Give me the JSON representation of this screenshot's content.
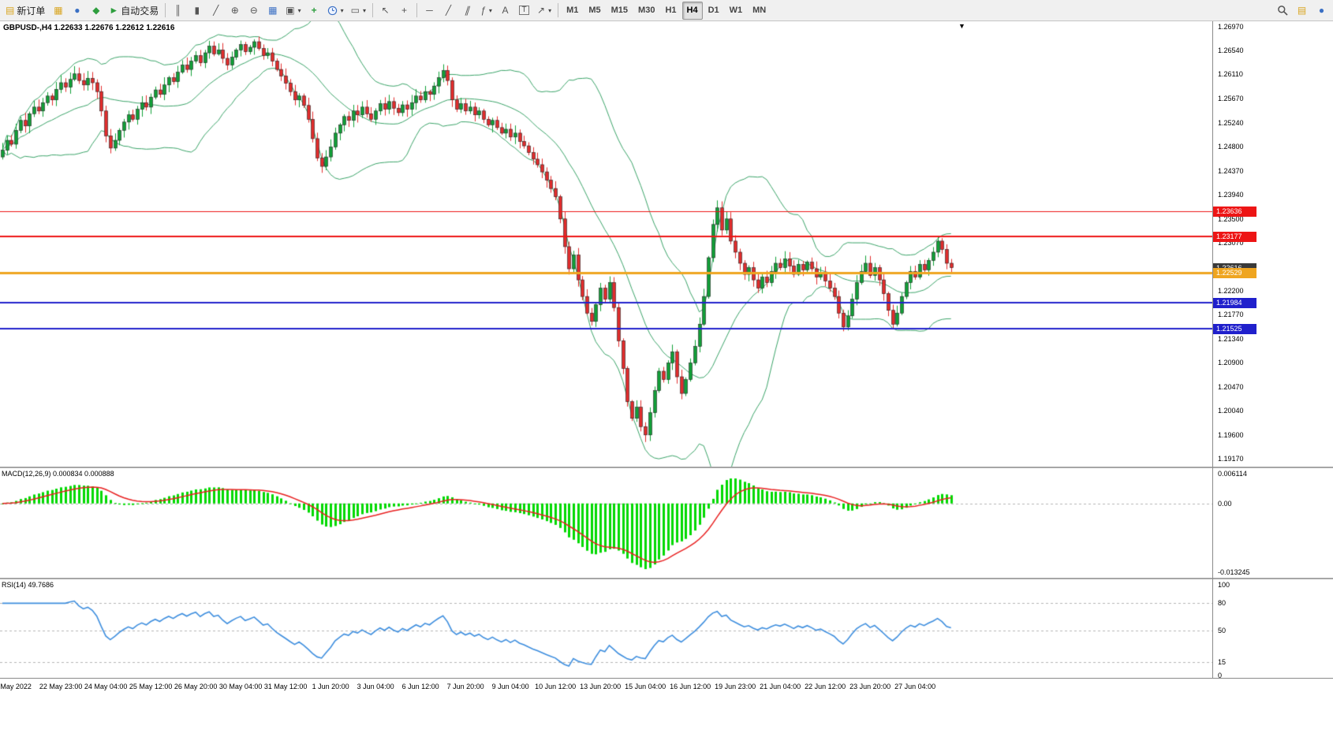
{
  "toolbar": {
    "new_order_label": "新订单",
    "autotrading_label": "自动交易",
    "timeframes": [
      "M1",
      "M5",
      "M15",
      "M30",
      "H1",
      "H4",
      "D1",
      "W1",
      "MN"
    ],
    "active_timeframe": "H4",
    "icons": {
      "new_order": "▤",
      "market_watch": "▦",
      "navigator": "●",
      "terminal": "◆",
      "autotrade_play": "►",
      "bar_chart": "║",
      "candle_chart": "▮",
      "line_chart": "╱",
      "zoom_in": "⊕",
      "zoom_out": "⊖",
      "tile_windows": "▦",
      "new_window": "▣",
      "indicators": "+",
      "templates": "▭",
      "cursor": "↖",
      "crosshair": "+",
      "hline": "─",
      "trendline": "╱",
      "channel": "∥",
      "fibonacci": "ƒ",
      "text": "A",
      "text_label": "T",
      "arrows": "↗",
      "dropdown": "▾",
      "shift_marker": "▼",
      "quick": "▤",
      "account": "●"
    }
  },
  "chart": {
    "symbol": "GBPUSD-",
    "period": "H4",
    "title": "GBPUSD-,H4 1.22633 1.22676 1.22612 1.22616",
    "ohlc": {
      "open": "1.22633",
      "high": "1.22676",
      "low": "1.22612",
      "close": "1.22616"
    }
  },
  "chart_data": {
    "type": "candlestick",
    "price_range": {
      "top": 1.2697,
      "bottom": 1.1917
    },
    "price_axis_ticks": [
      "1.26970",
      "1.26540",
      "1.26110",
      "1.25670",
      "1.25240",
      "1.24800",
      "1.24370",
      "1.23940",
      "1.23500",
      "1.23070",
      "1.22630",
      "1.22200",
      "1.21770",
      "1.21340",
      "1.20900",
      "1.20470",
      "1.20040",
      "1.19600",
      "1.19170"
    ],
    "closes": [
      1.2474,
      1.2492,
      1.2485,
      1.251,
      1.2528,
      1.2518,
      1.254,
      1.2552,
      1.2545,
      1.256,
      1.2572,
      1.2565,
      1.2584,
      1.2596,
      1.2588,
      1.2602,
      1.2612,
      1.26,
      1.2592,
      1.2604,
      1.2596,
      1.258,
      1.2545,
      1.25,
      1.2478,
      1.2492,
      1.251,
      1.2525,
      1.2538,
      1.253,
      1.2548,
      1.256,
      1.2552,
      1.257,
      1.2583,
      1.2575,
      1.2592,
      1.2605,
      1.2598,
      1.2615,
      1.2628,
      1.262,
      1.2635,
      1.2645,
      1.2632,
      1.265,
      1.2662,
      1.2648,
      1.2655,
      1.264,
      1.2628,
      1.2642,
      1.2655,
      1.2665,
      1.2652,
      1.266,
      1.267,
      1.2658,
      1.2645,
      1.265,
      1.2635,
      1.262,
      1.2608,
      1.2595,
      1.258,
      1.2565,
      1.2572,
      1.2555,
      1.253,
      1.2495,
      1.246,
      1.2445,
      1.2462,
      1.248,
      1.2505,
      1.252,
      1.2535,
      1.2528,
      1.2545,
      1.2538,
      1.2552,
      1.254,
      1.253,
      1.2545,
      1.2558,
      1.2548,
      1.2562,
      1.255,
      1.2542,
      1.2556,
      1.2548,
      1.256,
      1.2572,
      1.2565,
      1.258,
      1.2575,
      1.259,
      1.2605,
      1.2618,
      1.26,
      1.2565,
      1.2548,
      1.2558,
      1.2545,
      1.2552,
      1.2538,
      1.2545,
      1.253,
      1.252,
      1.2528,
      1.2515,
      1.2505,
      1.2512,
      1.2498,
      1.2505,
      1.249,
      1.2482,
      1.247,
      1.2458,
      1.2448,
      1.2435,
      1.242,
      1.2405,
      1.239,
      1.235,
      1.23,
      1.226,
      1.2285,
      1.224,
      1.221,
      1.218,
      1.2165,
      1.2195,
      1.2225,
      1.2205,
      1.2235,
      1.219,
      1.213,
      1.208,
      1.202,
      1.199,
      1.201,
      1.1975,
      1.196,
      1.2,
      1.204,
      1.2075,
      1.206,
      1.209,
      1.211,
      1.2065,
      1.2035,
      1.206,
      1.209,
      1.212,
      1.216,
      1.221,
      1.228,
      1.234,
      1.237,
      1.233,
      1.235,
      1.231,
      1.229,
      1.227,
      1.225,
      1.2262,
      1.224,
      1.2225,
      1.2245,
      1.2235,
      1.2255,
      1.227,
      1.2262,
      1.2278,
      1.2265,
      1.225,
      1.2268,
      1.2258,
      1.2272,
      1.226,
      1.2245,
      1.2252,
      1.2238,
      1.2225,
      1.221,
      1.218,
      1.2155,
      1.2175,
      1.2205,
      1.2235,
      1.2255,
      1.227,
      1.2248,
      1.2262,
      1.224,
      1.2215,
      1.2185,
      1.216,
      1.218,
      1.221,
      1.2235,
      1.2255,
      1.2245,
      1.2268,
      1.2258,
      1.2275,
      1.229,
      1.231,
      1.2295,
      1.227,
      1.2262
    ],
    "candle_colors": {
      "up": "#10a037",
      "down": "#e22c2c",
      "outline": "#1f1f1f"
    },
    "bollinger": {
      "period": 20,
      "deviation": 2,
      "color": "#3aa368"
    },
    "horizontal_lines": [
      {
        "price": 1.23636,
        "label": "1.23636",
        "color": "#ed1515",
        "width": 1
      },
      {
        "price": 1.23177,
        "label": "1.23177",
        "color": "#ed1515",
        "width": 2
      },
      {
        "price": 1.22529,
        "label": "1.22529",
        "color": "#efa520",
        "width": 3
      },
      {
        "price": 1.21984,
        "label": "1.21984",
        "color": "#2020cc",
        "width": 2
      },
      {
        "price": 1.21525,
        "label": "1.21525",
        "color": "#2020cc",
        "width": 2
      }
    ],
    "current_price": {
      "value": 1.22616,
      "label": "1.22616",
      "color": "#3a3a3a"
    },
    "time_labels": [
      "May 2022",
      "22 May 23:00",
      "24 May 04:00",
      "25 May 12:00",
      "26 May 20:00",
      "30 May 04:00",
      "31 May 12:00",
      "1 Jun 20:00",
      "3 Jun 04:00",
      "6 Jun 12:00",
      "7 Jun 20:00",
      "9 Jun 04:00",
      "10 Jun 12:00",
      "13 Jun 20:00",
      "15 Jun 04:00",
      "16 Jun 12:00",
      "19 Jun 23:00",
      "21 Jun 04:00",
      "22 Jun 12:00",
      "23 Jun 20:00",
      "27 Jun 04:00"
    ],
    "macd": {
      "label": "MACD(12,26,9) 0.000834 0.000888",
      "fast": 12,
      "slow": 26,
      "signal": 9,
      "values_text": [
        "0.000834",
        "0.000888"
      ],
      "scale_top": "0.006114",
      "scale_zero": "0.00",
      "scale_bottom": "-0.013245",
      "hist_color": "#00d900",
      "signal_color": "#e82020"
    },
    "rsi": {
      "label": "RSI(14) 49.7686",
      "period": 14,
      "value_text": "49.7686",
      "levels": [
        100,
        80,
        50,
        15,
        0
      ],
      "line_color": "#3e8ede"
    }
  }
}
